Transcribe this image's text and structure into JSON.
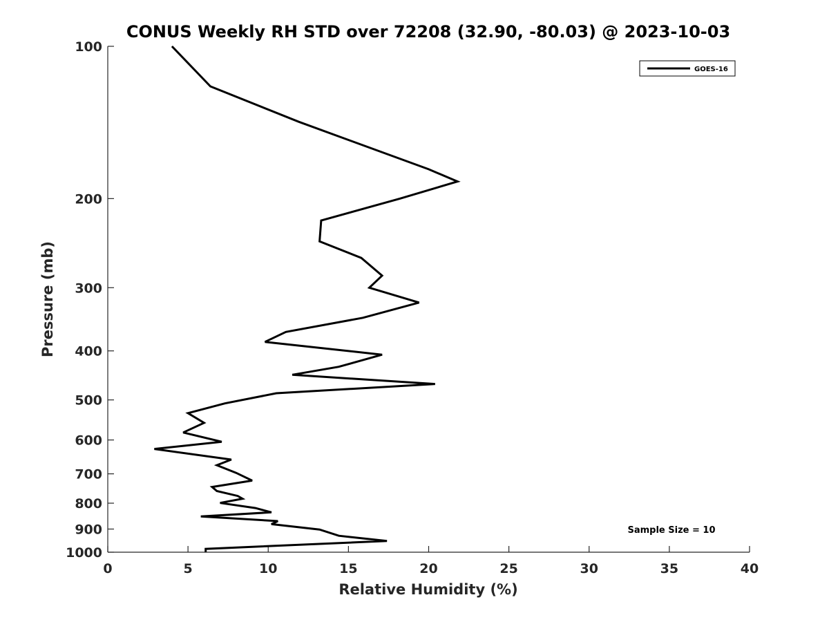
{
  "chart_data": {
    "type": "line",
    "title": "CONUS Weekly RH STD over 72208 (32.90, -80.03) @ 2023-10-03",
    "xlabel": "Relative Humidity (%)",
    "ylabel": "Pressure (mb)",
    "xlim": [
      0,
      40
    ],
    "ylim": [
      100,
      1000
    ],
    "y_scale": "log",
    "y_reversed": true,
    "x_ticks": [
      "0",
      "5",
      "10",
      "15",
      "20",
      "25",
      "30",
      "35",
      "40"
    ],
    "y_ticks": [
      "100",
      "200",
      "300",
      "400",
      "500",
      "600",
      "700",
      "800",
      "900",
      "1000"
    ],
    "legend_position": "top-right",
    "grid": false,
    "annotation": "Sample Size = 10",
    "series": [
      {
        "name": "GOES-16",
        "color": "#000000",
        "points": [
          [
            4.0,
            100
          ],
          [
            6.4,
            120
          ],
          [
            11.9,
            141
          ],
          [
            20.0,
            175
          ],
          [
            21.8,
            185
          ],
          [
            18.2,
            200
          ],
          [
            13.3,
            221
          ],
          [
            13.2,
            243
          ],
          [
            15.8,
            262
          ],
          [
            17.1,
            284
          ],
          [
            16.3,
            300
          ],
          [
            19.4,
            321
          ],
          [
            15.9,
            344
          ],
          [
            11.1,
            367
          ],
          [
            9.8,
            384
          ],
          [
            17.1,
            407
          ],
          [
            14.4,
            430
          ],
          [
            11.5,
            446
          ],
          [
            20.4,
            465
          ],
          [
            10.5,
            485
          ],
          [
            7.3,
            508
          ],
          [
            5.0,
            531
          ],
          [
            6.0,
            555
          ],
          [
            4.7,
            580
          ],
          [
            7.1,
            605
          ],
          [
            2.9,
            625
          ],
          [
            7.7,
            656
          ],
          [
            6.8,
            673
          ],
          [
            8.0,
            697
          ],
          [
            9.0,
            722
          ],
          [
            6.5,
            743
          ],
          [
            6.8,
            757
          ],
          [
            8.1,
            774
          ],
          [
            8.4,
            784
          ],
          [
            7.0,
            799
          ],
          [
            9.2,
            818
          ],
          [
            10.2,
            834
          ],
          [
            5.8,
            850
          ],
          [
            10.6,
            868
          ],
          [
            10.2,
            880
          ],
          [
            13.2,
            902
          ],
          [
            14.4,
            928
          ],
          [
            17.4,
            950
          ],
          [
            6.1,
            985
          ],
          [
            6.1,
            1000
          ]
        ]
      }
    ]
  }
}
